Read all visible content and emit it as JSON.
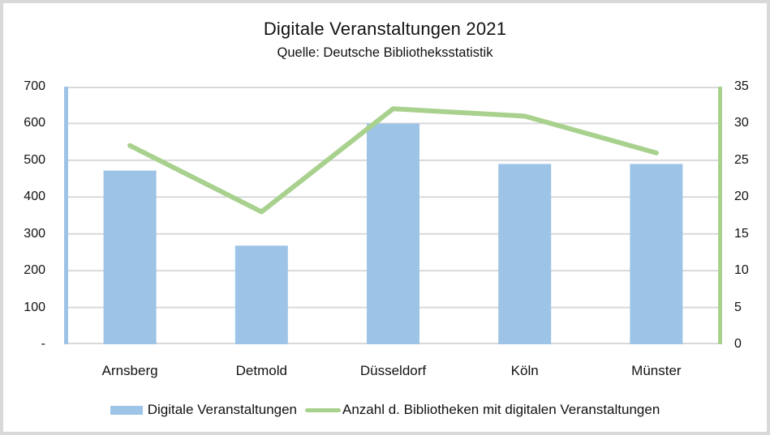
{
  "frame": {
    "border_color": "#D9D9D9",
    "background": "#FFFFFF"
  },
  "chart_data": {
    "type": "combo-bar-line",
    "title": "Digitale Veranstaltungen 2021",
    "subtitle": "Quelle: Deutsche Bibliotheksstatistik",
    "categories": [
      "Arnsberg",
      "Detmold",
      "Düsseldorf",
      "Köln",
      "Münster"
    ],
    "series": [
      {
        "name": "Digitale Veranstaltungen",
        "chart_type": "bar",
        "axis": "left",
        "color": "#9DC3E6",
        "values": [
          472,
          268,
          600,
          490,
          490
        ]
      },
      {
        "name": "Anzahl d. Bibliotheken mit digitalen Veranstaltungen",
        "chart_type": "line",
        "axis": "right",
        "color": "#A9D18E",
        "values": [
          27,
          18,
          32,
          31,
          26
        ]
      }
    ],
    "left_axis": {
      "min": 0,
      "max": 700,
      "step": 100,
      "tick_labels": [
        "700",
        "600",
        "500",
        "400",
        "300",
        "200",
        "100",
        "-"
      ]
    },
    "right_axis": {
      "min": 0,
      "max": 35,
      "step": 5,
      "tick_labels": [
        "35",
        "30",
        "25",
        "20",
        "15",
        "10",
        "5",
        "0"
      ]
    },
    "grid": true,
    "gridline_color": "#D9D9D9",
    "legend_position": "bottom"
  }
}
